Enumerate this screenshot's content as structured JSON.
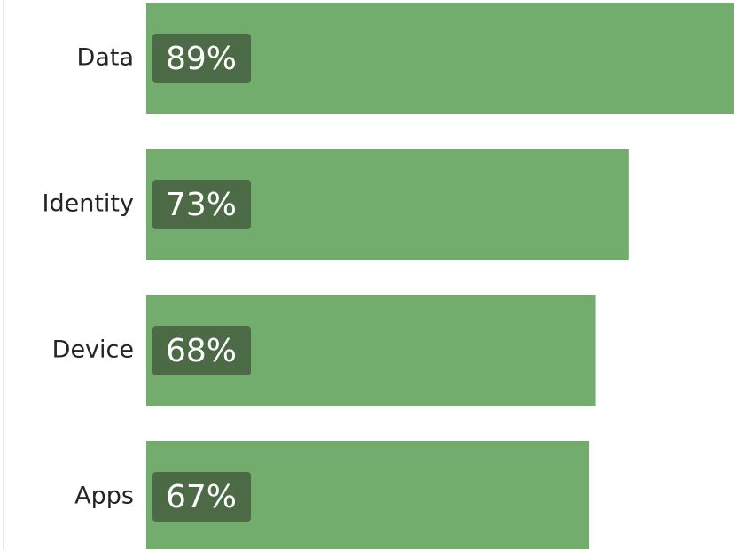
{
  "chart_data": {
    "type": "bar",
    "orientation": "horizontal",
    "categories": [
      "Data",
      "Identity",
      "Device",
      "Apps"
    ],
    "values": [
      89,
      73,
      68,
      67
    ],
    "value_labels": [
      "89%",
      "73%",
      "68%",
      "67%"
    ],
    "color": "#72ad6e"
  }
}
